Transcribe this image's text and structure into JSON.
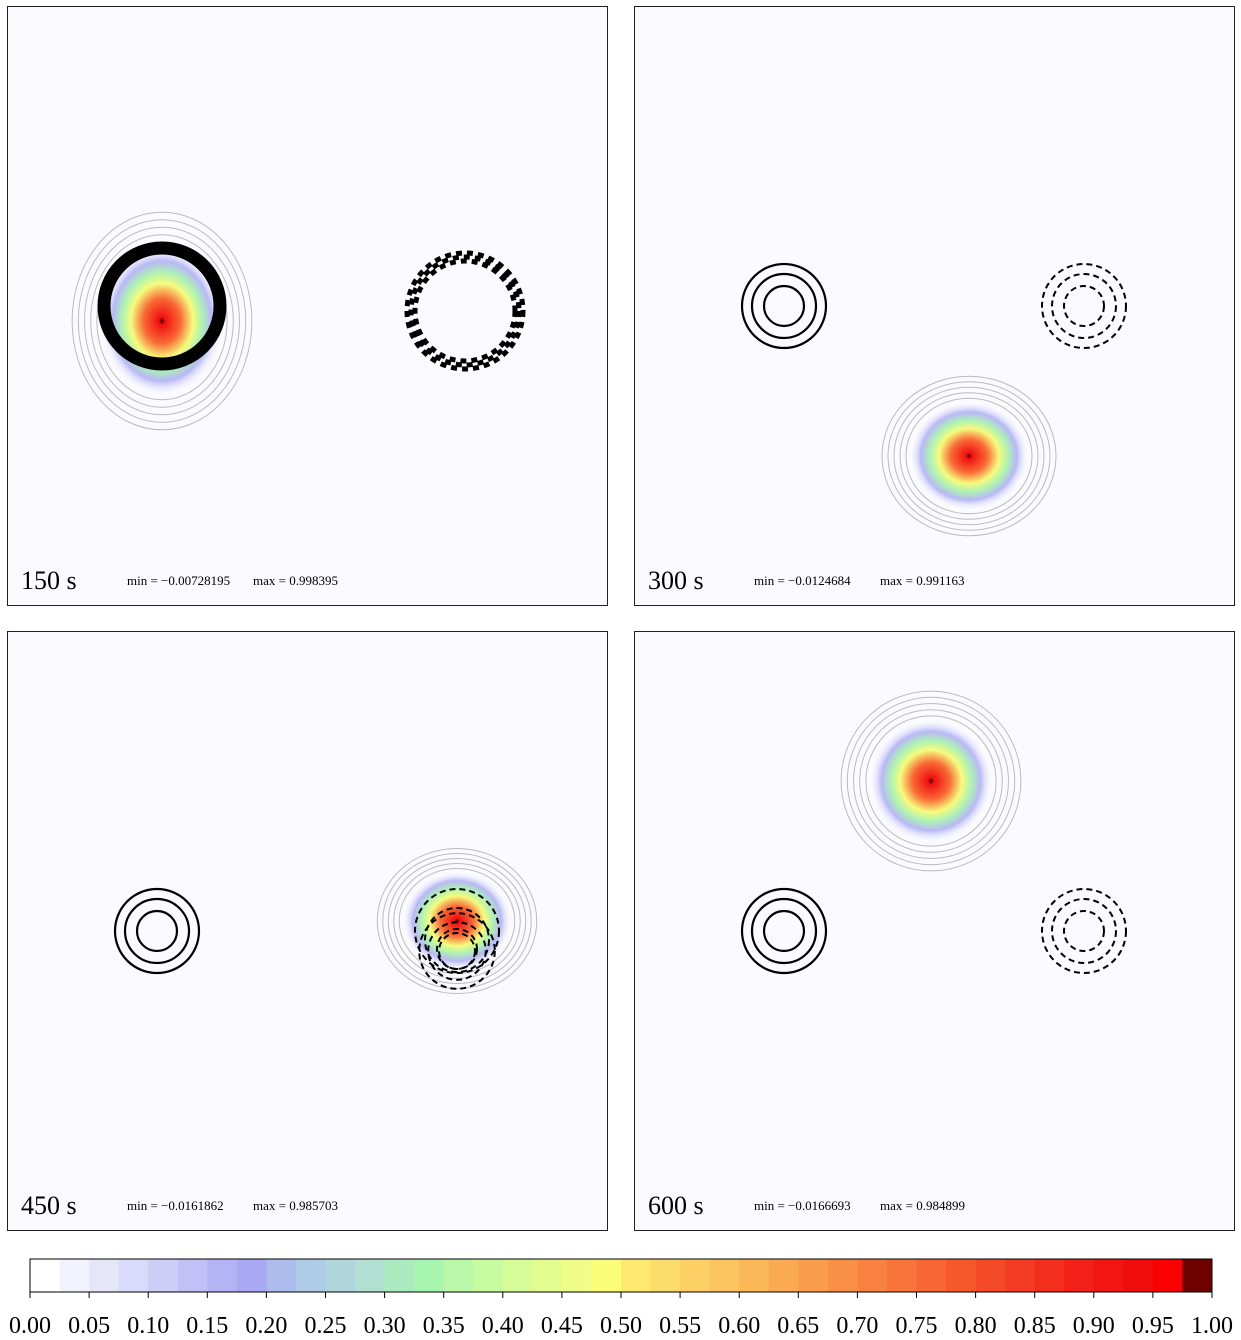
{
  "panels": [
    {
      "time": "150 s",
      "min": "min = −0.00728195",
      "max": "max = 0.998395"
    },
    {
      "time": "300 s",
      "min": "min = −0.0124684",
      "max": "max = 0.991163"
    },
    {
      "time": "450 s",
      "min": "min = −0.0161862",
      "max": "max = 0.985703"
    },
    {
      "time": "600 s",
      "min": "min = −0.0166693",
      "max": "max = 0.984899"
    }
  ],
  "colorbar": {
    "lim": [
      0,
      1
    ],
    "ticks": [
      {
        "value": 0,
        "label": "0.00"
      },
      {
        "value": 0.05,
        "label": "0.05"
      },
      {
        "value": 0.1,
        "label": "0.10"
      },
      {
        "value": 0.15,
        "label": "0.15"
      },
      {
        "value": 0.2,
        "label": "0.20"
      },
      {
        "value": 0.25,
        "label": "0.25"
      },
      {
        "value": 0.3,
        "label": "0.30"
      },
      {
        "value": 0.35,
        "label": "0.35"
      },
      {
        "value": 0.4,
        "label": "0.40"
      },
      {
        "value": 0.45,
        "label": "0.45"
      },
      {
        "value": 0.5,
        "label": "0.50"
      },
      {
        "value": 0.55,
        "label": "0.55"
      },
      {
        "value": 0.6,
        "label": "0.60"
      },
      {
        "value": 0.65,
        "label": "0.65"
      },
      {
        "value": 0.7,
        "label": "0.70"
      },
      {
        "value": 0.75,
        "label": "0.75"
      },
      {
        "value": 0.8,
        "label": "0.80"
      },
      {
        "value": 0.85,
        "label": "0.85"
      },
      {
        "value": 0.9,
        "label": "0.90"
      },
      {
        "value": 0.95,
        "label": "0.95"
      },
      {
        "value": 1,
        "label": "1.00"
      }
    ],
    "colors": [
      "#ffffff",
      "#f2f2fd",
      "#e6e6fb",
      "#dadafa",
      "#cdcdf8",
      "#c1c1f7",
      "#b4b4f5",
      "#a8a8f3",
      "#acbcec",
      "#afcbe5",
      "#b0d6dc",
      "#b0e0d2",
      "#acebc0",
      "#a8f5b0",
      "#b8f8a8",
      "#c8fba0",
      "#d6fc98",
      "#e3fc90",
      "#effd88",
      "#fbfd78",
      "#fde870",
      "#fcdc6a",
      "#fcd064",
      "#fbc45e",
      "#fbb858",
      "#faab52",
      "#fa9e4c",
      "#f99046",
      "#f98240",
      "#f8743a",
      "#f76634",
      "#f6582e",
      "#f54a28",
      "#f43c22",
      "#f32e1c",
      "#f22016",
      "#f11610",
      "#f00c0a",
      "#fb0000",
      "#6e0000"
    ]
  }
}
